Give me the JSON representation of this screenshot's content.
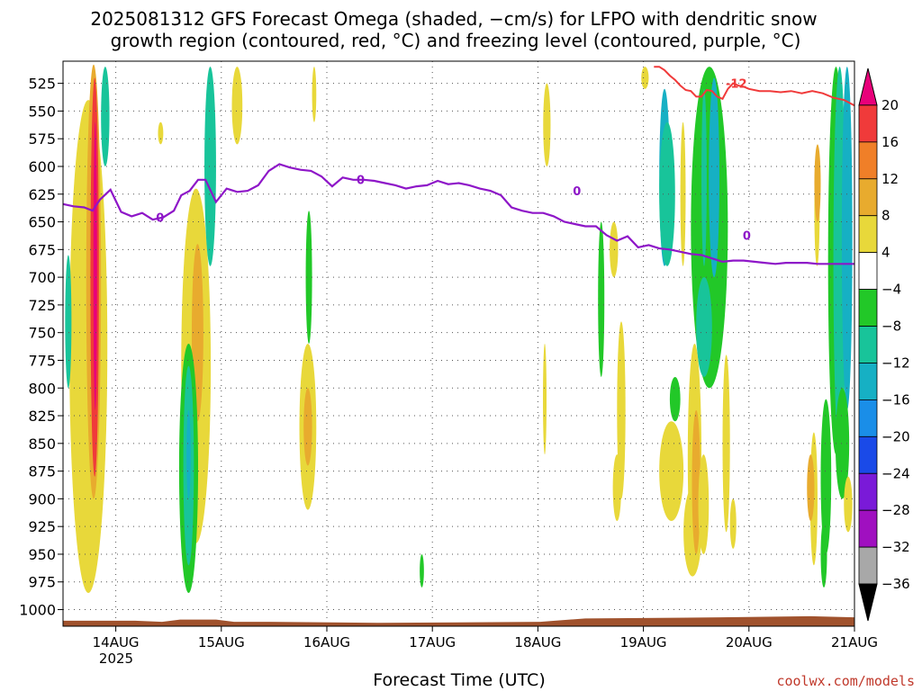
{
  "chart_data": {
    "type": "heatmap",
    "title_line1": "2025081312 GFS Forecast Omega (shaded, −cm/s) for LFPO with dendritic snow",
    "title_line2": "growth region (contoured, red, °C) and freezing level (contoured, purple, °C)",
    "xlabel": "Forecast Time (UTC)",
    "x_ticks": [
      "14AUG",
      "15AUG",
      "16AUG",
      "17AUG",
      "18AUG",
      "19AUG",
      "20AUG",
      "21AUG"
    ],
    "x_year": "2025",
    "x_range_days": [
      13.5,
      21.0
    ],
    "y_ticks": [
      525,
      550,
      575,
      600,
      625,
      650,
      675,
      700,
      725,
      750,
      775,
      800,
      825,
      850,
      875,
      900,
      925,
      950,
      975,
      1000
    ],
    "y_range": [
      505,
      1015
    ],
    "colorbar": {
      "levels": [
        "20",
        "16",
        "12",
        "8",
        "4",
        "−4",
        "−8",
        "−12",
        "−16",
        "−20",
        "−24",
        "−28",
        "−32",
        "−36"
      ],
      "colors": [
        "#e8007a",
        "#f03a3a",
        "#f07f28",
        "#e8ab2e",
        "#e8d83a",
        "#ffffff",
        "#22c828",
        "#18c49a",
        "#16b0c4",
        "#1a8ee8",
        "#1a4ae8",
        "#7a1ad8",
        "#a010c0",
        "#a8a8a8",
        "#000000"
      ]
    },
    "freezing_level_label": "0",
    "dgz_label": "-12",
    "freezing_level": {
      "t": [
        13.5,
        13.6,
        13.7,
        13.78,
        13.85,
        13.95,
        14.05,
        14.15,
        14.25,
        14.35,
        14.45,
        14.55,
        14.62,
        14.7,
        14.78,
        14.85,
        14.95,
        15.05,
        15.15,
        15.25,
        15.35,
        15.45,
        15.55,
        15.65,
        15.75,
        15.85,
        15.95,
        16.05,
        16.15,
        16.25,
        16.35,
        16.45,
        16.55,
        16.65,
        16.75,
        16.85,
        16.95,
        17.05,
        17.15,
        17.25,
        17.35,
        17.45,
        17.55,
        17.65,
        17.75,
        17.85,
        17.95,
        18.05,
        18.15,
        18.25,
        18.35,
        18.45,
        18.55,
        18.65,
        18.75,
        18.85,
        18.95,
        19.05,
        19.15,
        19.25,
        19.35,
        19.45,
        19.55,
        19.65,
        19.75,
        19.85,
        19.95,
        20.05,
        20.15,
        20.25,
        20.35,
        20.45,
        20.55,
        20.65,
        20.75,
        20.85,
        20.95,
        21.0
      ],
      "p": [
        634,
        636,
        637,
        640,
        630,
        621,
        641,
        645,
        642,
        648,
        646,
        640,
        626,
        622,
        612,
        612,
        632,
        620,
        623,
        622,
        617,
        604,
        598,
        601,
        603,
        604,
        609,
        618,
        610,
        612,
        612,
        613,
        615,
        617,
        620,
        618,
        617,
        613,
        616,
        615,
        617,
        620,
        622,
        626,
        637,
        640,
        642,
        642,
        645,
        650,
        652,
        654,
        654,
        662,
        667,
        663,
        673,
        671,
        674,
        675,
        677,
        679,
        680,
        683,
        686,
        685,
        685,
        686,
        687,
        688,
        687,
        687,
        687,
        688,
        688,
        688,
        688,
        688
      ]
    },
    "dgz_minus12": {
      "t": [
        19.1,
        19.15,
        19.2,
        19.25,
        19.3,
        19.35,
        19.4,
        19.45,
        19.5,
        19.55,
        19.6,
        19.65,
        19.7,
        19.75,
        19.8,
        19.85,
        19.9,
        19.95,
        20.0,
        20.1,
        20.2,
        20.3,
        20.4,
        20.5,
        20.6,
        20.7,
        20.8,
        20.9,
        21.0
      ],
      "p": [
        510,
        510,
        513,
        518,
        522,
        527,
        531,
        532,
        537,
        537,
        531,
        532,
        537,
        539,
        530,
        525,
        527,
        528,
        530,
        532,
        532,
        533,
        532,
        534,
        532,
        534,
        538,
        540,
        545
      ]
    },
    "terrain_top_p": 1010
  }
}
